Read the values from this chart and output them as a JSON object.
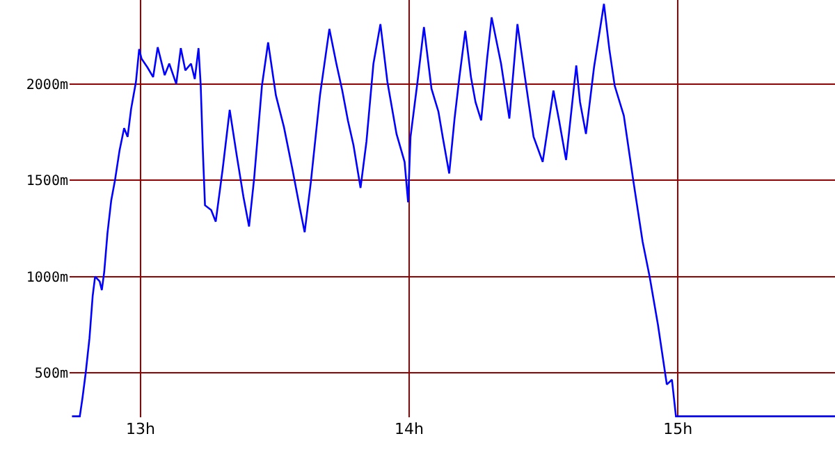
{
  "chart_data": {
    "type": "line",
    "x": [
      12.745,
      12.774,
      12.784,
      12.796,
      12.81,
      12.822,
      12.831,
      12.848,
      12.856,
      12.865,
      12.877,
      12.891,
      12.905,
      12.922,
      12.939,
      12.952,
      12.965,
      12.983,
      12.995,
      13.004,
      13.026,
      13.047,
      13.064,
      13.09,
      13.107,
      13.133,
      13.15,
      13.167,
      13.188,
      13.202,
      13.216,
      13.224,
      13.232,
      13.24,
      13.263,
      13.28,
      13.306,
      13.332,
      13.358,
      13.383,
      13.404,
      13.423,
      13.452,
      13.475,
      13.504,
      13.534,
      13.565,
      13.591,
      13.611,
      13.634,
      13.668,
      13.703,
      13.729,
      13.751,
      13.772,
      13.793,
      13.819,
      13.841,
      13.867,
      13.893,
      13.919,
      13.953,
      13.983,
      13.996,
      14.005,
      14.031,
      14.055,
      14.083,
      14.109,
      14.126,
      14.149,
      14.169,
      14.187,
      14.209,
      14.23,
      14.247,
      14.268,
      14.29,
      14.307,
      14.342,
      14.373,
      14.403,
      14.432,
      14.463,
      14.497,
      14.537,
      14.558,
      14.584,
      14.622,
      14.636,
      14.658,
      14.688,
      14.725,
      14.745,
      14.765,
      14.799,
      14.834,
      14.869,
      14.895,
      14.926,
      14.959,
      14.978,
      14.993,
      15.585
    ],
    "series": [
      {
        "color": "#0000ff",
        "values": [
          275,
          275,
          370,
          500,
          680,
          900,
          1000,
          975,
          930,
          1025,
          1225,
          1395,
          1500,
          1655,
          1770,
          1725,
          1870,
          2010,
          2180,
          2130,
          2085,
          2035,
          2190,
          2045,
          2105,
          2000,
          2185,
          2070,
          2105,
          2025,
          2185,
          1995,
          1655,
          1370,
          1345,
          1285,
          1560,
          1865,
          1630,
          1415,
          1260,
          1510,
          1990,
          2215,
          1940,
          1775,
          1560,
          1370,
          1230,
          1490,
          1940,
          2285,
          2105,
          1965,
          1810,
          1680,
          1460,
          1700,
          2105,
          2310,
          2010,
          1740,
          1595,
          1385,
          1725,
          2010,
          2295,
          1975,
          1855,
          1715,
          1535,
          1820,
          2035,
          2275,
          2035,
          1905,
          1810,
          2130,
          2345,
          2105,
          1820,
          2310,
          2025,
          1725,
          1595,
          1965,
          1810,
          1605,
          2095,
          1905,
          1740,
          2085,
          2415,
          2180,
          1990,
          1835,
          1500,
          1180,
          1000,
          750,
          440,
          465,
          275,
          275
        ]
      }
    ],
    "xlim": [
      12.736,
      15.585
    ],
    "ylim": [
      270,
      2435
    ],
    "xticks": [
      {
        "value": 13,
        "label": "13h"
      },
      {
        "value": 14,
        "label": "14h"
      },
      {
        "value": 15,
        "label": "15h"
      }
    ],
    "yticks": [
      {
        "value": 500,
        "label": "500m"
      },
      {
        "value": 1000,
        "label": "1000m"
      },
      {
        "value": 1500,
        "label": "1500m"
      },
      {
        "value": 2000,
        "label": "2000m"
      }
    ],
    "grid": true,
    "marker": "none",
    "line_style": "solid"
  }
}
